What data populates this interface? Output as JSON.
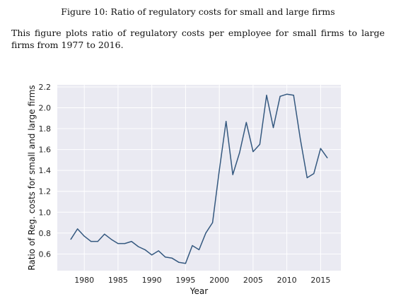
{
  "figure": {
    "caption": "Figure 10: Ratio of regulatory costs for small and large firms",
    "description": "This figure plots ratio of regulatory costs per employee for small firms to large firms from 1977 to 2016."
  },
  "chart_data": {
    "type": "line",
    "title": "",
    "xlabel": "Year",
    "ylabel": "Ratio of Reg. costs for small and large firms",
    "xlim": [
      1976,
      2018
    ],
    "ylim": [
      0.44,
      2.22
    ],
    "xticks": [
      1980,
      1985,
      1990,
      1995,
      2000,
      2005,
      2010,
      2015
    ],
    "yticks": [
      0.6,
      0.8,
      1.0,
      1.2,
      1.4,
      1.6,
      1.8,
      2.0,
      2.2
    ],
    "ytick_labels": [
      "0.6",
      "0.8",
      "1.0",
      "1.2",
      "1.4",
      "1.6",
      "1.8",
      "2.0",
      "2.2"
    ],
    "grid": true,
    "legend": "none",
    "colors": {
      "line": "#34587f",
      "plot_background": "#eaeaf2",
      "grid": "#ffffff"
    },
    "series": [
      {
        "x": [
          1978,
          1979,
          1980,
          1981,
          1982,
          1983,
          1984,
          1985,
          1986,
          1987,
          1988,
          1989,
          1990,
          1991,
          1992,
          1993,
          1994,
          1995,
          1996,
          1997,
          1998,
          1999,
          2000,
          2001,
          2002,
          2003,
          2004,
          2005,
          2006,
          2007,
          2008,
          2009,
          2010,
          2011,
          2012,
          2013,
          2014,
          2015,
          2016
        ],
        "y": [
          0.74,
          0.84,
          0.77,
          0.72,
          0.72,
          0.79,
          0.74,
          0.7,
          0.7,
          0.72,
          0.67,
          0.64,
          0.59,
          0.63,
          0.57,
          0.56,
          0.52,
          0.51,
          0.68,
          0.64,
          0.8,
          0.9,
          1.4,
          1.87,
          1.36,
          1.57,
          1.86,
          1.58,
          1.65,
          2.12,
          1.81,
          2.11,
          2.13,
          2.12,
          1.7,
          1.33,
          1.37,
          1.61,
          1.52
        ]
      }
    ]
  }
}
